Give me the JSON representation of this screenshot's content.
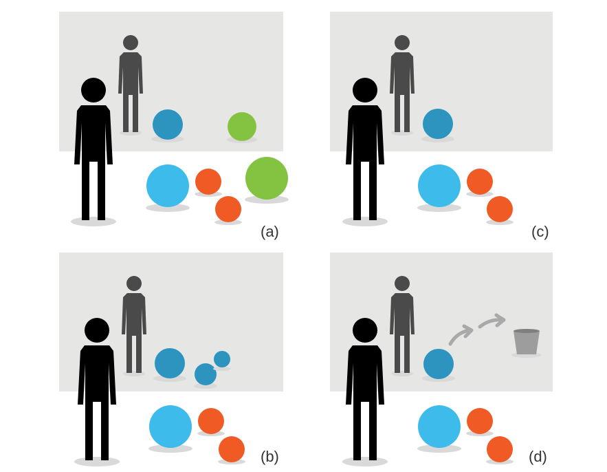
{
  "panels": [
    {
      "id": "a",
      "label": "(a)"
    },
    {
      "id": "c",
      "label": "(c)"
    },
    {
      "id": "b",
      "label": "(b)"
    },
    {
      "id": "d",
      "label": "(d)"
    }
  ],
  "colors": {
    "backdrop": "#e6e6e5",
    "foreground_person": "#000000",
    "background_person": "#4a4a4a",
    "ball_light_blue": "#3dbbeb",
    "ball_dark_blue": "#2d93bf",
    "ball_orange": "#ef5a25",
    "ball_green": "#84c241",
    "shadow": "#d9d9d9",
    "arrow": "#a9a9a9",
    "bucket": "#9d9d9d"
  }
}
